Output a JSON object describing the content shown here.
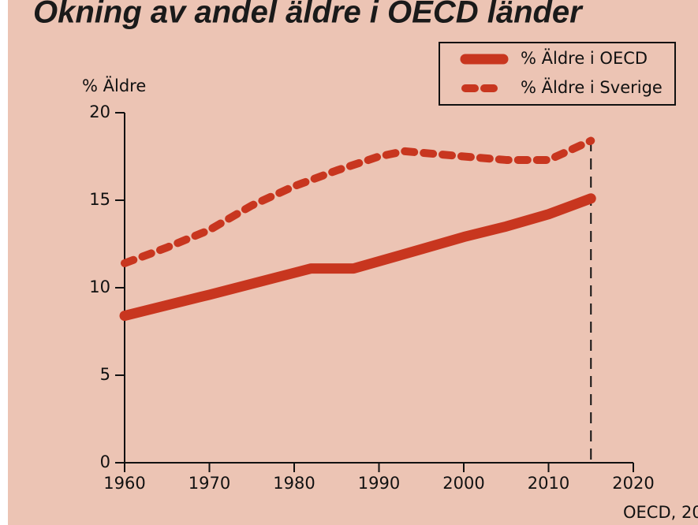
{
  "chart_data": {
    "type": "line",
    "title": "Okning av andel äldre i OECD länder",
    "y_label": "% Äldre",
    "source": "OECD, 20",
    "xlim": [
      1960,
      2020
    ],
    "xticks": [
      1960,
      1970,
      1980,
      1990,
      2000,
      2010,
      2020
    ],
    "ylim": [
      0,
      20
    ],
    "yticks": [
      0,
      5,
      10,
      15,
      20
    ],
    "vline_x": 2015,
    "legend": "top-right",
    "series": [
      {
        "name": "% Äldre i OECD",
        "color": "#c8361f",
        "style": "solid",
        "x": [
          1960,
          1970,
          1982,
          1987,
          1995,
          2000,
          2005,
          2010,
          2015
        ],
        "values": [
          8.4,
          9.6,
          11.1,
          11.1,
          12.2,
          12.9,
          13.5,
          14.2,
          15.1
        ]
      },
      {
        "name": "% Äldre i Sverige",
        "color": "#c8361f",
        "style": "dashed",
        "x": [
          1960,
          1965,
          1970,
          1975,
          1980,
          1985,
          1990,
          1993,
          2000,
          2005,
          2010,
          2015
        ],
        "values": [
          11.4,
          12.3,
          13.3,
          14.7,
          15.8,
          16.7,
          17.5,
          17.8,
          17.5,
          17.3,
          17.3,
          18.4
        ]
      }
    ]
  }
}
